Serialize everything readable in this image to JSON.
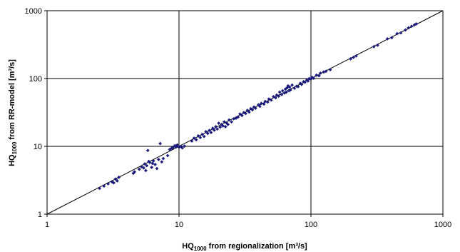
{
  "chart_data": {
    "type": "scatter",
    "x_scale": "log",
    "y_scale": "log",
    "xlim": [
      1,
      1000
    ],
    "ylim": [
      1,
      1000
    ],
    "grid": true,
    "legend": "none",
    "x_ticks": [
      "1",
      "10",
      "100",
      "1000"
    ],
    "y_ticks": [
      "1",
      "10",
      "100",
      "1000"
    ],
    "xlabel": {
      "pre": "HQ",
      "sub": "1000",
      "post": " from regionalization [m³/s]"
    },
    "ylabel": {
      "pre": "HQ",
      "sub": "1000",
      "post": " from RR-model [m³/s]"
    },
    "reference_line": {
      "from": [
        1,
        1
      ],
      "to": [
        1000,
        1000
      ]
    },
    "marker_color": "#1a1a7e",
    "points": [
      [
        2.5,
        2.4
      ],
      [
        2.7,
        2.6
      ],
      [
        2.9,
        2.8
      ],
      [
        3.1,
        3.0
      ],
      [
        3.2,
        2.9
      ],
      [
        3.3,
        3.3
      ],
      [
        3.4,
        3.1
      ],
      [
        3.5,
        3.5
      ],
      [
        4.5,
        4.0
      ],
      [
        4.6,
        4.2
      ],
      [
        5.0,
        4.6
      ],
      [
        5.2,
        5.0
      ],
      [
        5.4,
        4.8
      ],
      [
        5.5,
        5.5
      ],
      [
        5.6,
        4.4
      ],
      [
        5.7,
        5.2
      ],
      [
        5.8,
        8.7
      ],
      [
        5.9,
        6.0
      ],
      [
        6.0,
        5.8
      ],
      [
        6.2,
        4.9
      ],
      [
        6.3,
        5.6
      ],
      [
        6.4,
        6.1
      ],
      [
        6.6,
        5.4
      ],
      [
        6.8,
        4.7
      ],
      [
        7.0,
        6.4
      ],
      [
        7.2,
        11.0
      ],
      [
        7.4,
        5.9
      ],
      [
        7.6,
        6.6
      ],
      [
        8.2,
        7.3
      ],
      [
        8.5,
        9.0
      ],
      [
        8.8,
        9.4
      ],
      [
        9.0,
        9.6
      ],
      [
        9.3,
        10.2
      ],
      [
        9.5,
        9.8
      ],
      [
        9.7,
        10.5
      ],
      [
        10.0,
        9.7
      ],
      [
        10.3,
        10.0
      ],
      [
        10.6,
        9.5
      ],
      [
        11.0,
        10.1
      ],
      [
        12.5,
        12.0
      ],
      [
        13.0,
        13.2
      ],
      [
        13.5,
        12.5
      ],
      [
        14.0,
        14.3
      ],
      [
        14.5,
        13.5
      ],
      [
        15.0,
        15.0
      ],
      [
        15.5,
        14.0
      ],
      [
        16.0,
        16.5
      ],
      [
        16.5,
        15.5
      ],
      [
        17.0,
        17.2
      ],
      [
        17.5,
        16.0
      ],
      [
        18.0,
        18.5
      ],
      [
        18.5,
        17.3
      ],
      [
        19.0,
        19.5
      ],
      [
        19.5,
        18.0
      ],
      [
        20.0,
        22.0
      ],
      [
        20.5,
        19.2
      ],
      [
        21.0,
        21.0
      ],
      [
        21.5,
        20.0
      ],
      [
        22.0,
        23.0
      ],
      [
        22.5,
        19.5
      ],
      [
        23.0,
        22.0
      ],
      [
        23.5,
        21.0
      ],
      [
        24.0,
        24.5
      ],
      [
        25.0,
        23.0
      ],
      [
        26.0,
        25.5
      ],
      [
        27.0,
        26.0
      ],
      [
        28.0,
        27.0
      ],
      [
        29.0,
        30.0
      ],
      [
        30.0,
        28.5
      ],
      [
        31.0,
        31.5
      ],
      [
        32.0,
        30.5
      ],
      [
        33.0,
        34.0
      ],
      [
        34.0,
        32.0
      ],
      [
        35.0,
        36.0
      ],
      [
        36.0,
        34.5
      ],
      [
        37.0,
        38.0
      ],
      [
        38.0,
        36.5
      ],
      [
        40.0,
        41.0
      ],
      [
        41.0,
        39.0
      ],
      [
        42.0,
        43.0
      ],
      [
        44.0,
        42.0
      ],
      [
        45.0,
        46.0
      ],
      [
        47.0,
        45.0
      ],
      [
        48.0,
        50.0
      ],
      [
        50.0,
        48.0
      ],
      [
        52.0,
        54.0
      ],
      [
        54.0,
        52.0
      ],
      [
        55.0,
        57.0
      ],
      [
        57.0,
        55.0
      ],
      [
        58.0,
        63.0
      ],
      [
        60.0,
        58.0
      ],
      [
        61.0,
        66.0
      ],
      [
        63.0,
        61.0
      ],
      [
        64.0,
        70.0
      ],
      [
        65.0,
        63.0
      ],
      [
        66.0,
        73.0
      ],
      [
        67.0,
        78.0
      ],
      [
        68.0,
        66.0
      ],
      [
        69.0,
        75.0
      ],
      [
        70.0,
        68.0
      ],
      [
        72.0,
        80.0
      ],
      [
        75.0,
        72.0
      ],
      [
        78.0,
        77.0
      ],
      [
        80.0,
        76.0
      ],
      [
        83.0,
        85.0
      ],
      [
        85.0,
        82.0
      ],
      [
        88.0,
        90.0
      ],
      [
        90.0,
        88.0
      ],
      [
        93.0,
        95.0
      ],
      [
        95.0,
        92.0
      ],
      [
        97.0,
        100.0
      ],
      [
        100.0,
        98.0
      ],
      [
        102.0,
        104.0
      ],
      [
        105.0,
        101.0
      ],
      [
        110.0,
        112.0
      ],
      [
        115.0,
        110.0
      ],
      [
        118.0,
        120.0
      ],
      [
        125.0,
        125.0
      ],
      [
        130.0,
        128.0
      ],
      [
        140.0,
        135.0
      ],
      [
        200.0,
        195.0
      ],
      [
        210.0,
        205.0
      ],
      [
        220.0,
        215.0
      ],
      [
        300.0,
        295.0
      ],
      [
        320.0,
        310.0
      ],
      [
        380.0,
        385.0
      ],
      [
        410.0,
        400.0
      ],
      [
        450.0,
        460.0
      ],
      [
        480.0,
        470.0
      ],
      [
        520.0,
        520.0
      ],
      [
        550.0,
        560.0
      ],
      [
        580.0,
        590.0
      ],
      [
        610.0,
        620.0
      ],
      [
        630.0,
        640.0
      ]
    ]
  }
}
